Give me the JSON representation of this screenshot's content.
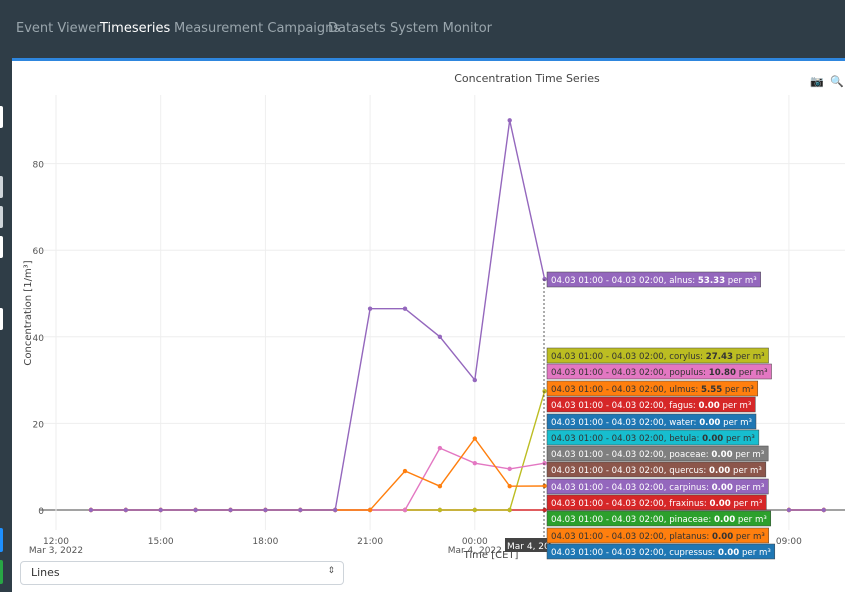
{
  "nav": {
    "items": [
      {
        "label": "Event Viewer",
        "active": false
      },
      {
        "label": "Timeseries",
        "active": true
      },
      {
        "label": "Measurement Campaigns",
        "active": false
      },
      {
        "label": "Datasets",
        "active": false
      },
      {
        "label": "System Monitor",
        "active": false
      }
    ]
  },
  "toolbar": {
    "camera_icon": "camera-icon",
    "zoom_icon": "zoom-icon"
  },
  "select": {
    "value": "Lines"
  },
  "chart_data": {
    "type": "line",
    "title": "Concentration Time Series",
    "xlabel": "Time [CET]",
    "ylabel": "Concentration [1/m³]",
    "ylim": [
      -2,
      92
    ],
    "yticks": [
      0,
      20,
      40,
      60,
      80
    ],
    "xticks": [
      {
        "label": "12:00",
        "sub": "Mar 3, 2022",
        "h": 12
      },
      {
        "label": "15:00",
        "sub": "",
        "h": 15
      },
      {
        "label": "18:00",
        "sub": "",
        "h": 18
      },
      {
        "label": "21:00",
        "sub": "",
        "h": 21
      },
      {
        "label": "00:00",
        "sub": "Mar 4, 2022",
        "h": 24
      },
      {
        "label": "09:00",
        "sub": "",
        "h": 33
      }
    ],
    "x_hover": "Mar 4, 2022",
    "x_hours": [
      13,
      14,
      15,
      16,
      17,
      18,
      19,
      20,
      21,
      22,
      23,
      24,
      25,
      26,
      27,
      28,
      29,
      30,
      31,
      32,
      33,
      34
    ],
    "series": [
      {
        "name": "alnus",
        "color": "#9467bd",
        "values": [
          0,
          0,
          0,
          0,
          0,
          0,
          0,
          0,
          46.5,
          46.5,
          40,
          30,
          90,
          53.33,
          null,
          null,
          null,
          null,
          null,
          null,
          0,
          0
        ]
      },
      {
        "name": "ulmus",
        "color": "#ff7f0e",
        "values": [
          0,
          0,
          0,
          0,
          0,
          0,
          0,
          0,
          0,
          9,
          5.5,
          16.5,
          5.5,
          5.55,
          null,
          null,
          null,
          null,
          null,
          null,
          0,
          0
        ]
      },
      {
        "name": "populus",
        "color": "#e377c2",
        "values": [
          0,
          0,
          0,
          0,
          0,
          0,
          0,
          0,
          0,
          0,
          14.3,
          10.8,
          9.5,
          10.8,
          null,
          null,
          null,
          null,
          null,
          null,
          0,
          0
        ]
      },
      {
        "name": "corylus",
        "color": "#bcbd22",
        "values": [
          0,
          0,
          0,
          0,
          0,
          0,
          0,
          0,
          0,
          0,
          0,
          0,
          0,
          27.43,
          null,
          null,
          null,
          null,
          null,
          null,
          0,
          0
        ]
      },
      {
        "name": "fagus",
        "color": "#d62728",
        "values": [
          0,
          0,
          0,
          0,
          0,
          0,
          0,
          0,
          0,
          0,
          0,
          0,
          0,
          0,
          null,
          null,
          null,
          null,
          null,
          null,
          0,
          0
        ]
      }
    ],
    "tooltips": [
      {
        "range": "04.03 01:00 - 04.03 02:00",
        "name": "alnus",
        "value": "53.33",
        "unit": "per m³",
        "bg": "#9467bd",
        "fg": "#ffffff"
      },
      {
        "range": "04.03 01:00 - 04.03 02:00",
        "name": "corylus",
        "value": "27.43",
        "unit": "per m³",
        "bg": "#bcbd22",
        "fg": "#333333"
      },
      {
        "range": "04.03 01:00 - 04.03 02:00",
        "name": "populus",
        "value": "10.80",
        "unit": "per m³",
        "bg": "#e377c2",
        "fg": "#333333"
      },
      {
        "range": "04.03 01:00 - 04.03 02:00",
        "name": "ulmus",
        "value": "5.55",
        "unit": "per m³",
        "bg": "#ff7f0e",
        "fg": "#333333"
      },
      {
        "range": "04.03 01:00 - 04.03 02:00",
        "name": "fagus",
        "value": "0.00",
        "unit": "per m³",
        "bg": "#d62728",
        "fg": "#ffffff"
      },
      {
        "range": "04.03 01:00 - 04.03 02:00",
        "name": "water",
        "value": "0.00",
        "unit": "per m³",
        "bg": "#1f77b4",
        "fg": "#ffffff"
      },
      {
        "range": "04.03 01:00 - 04.03 02:00",
        "name": "betula",
        "value": "0.00",
        "unit": "per m³",
        "bg": "#17becf",
        "fg": "#333333"
      },
      {
        "range": "04.03 01:00 - 04.03 02:00",
        "name": "poaceae",
        "value": "0.00",
        "unit": "per m³",
        "bg": "#7f7f7f",
        "fg": "#ffffff"
      },
      {
        "range": "04.03 01:00 - 04.03 02:00",
        "name": "quercus",
        "value": "0.00",
        "unit": "per m³",
        "bg": "#8c564b",
        "fg": "#ffffff"
      },
      {
        "range": "04.03 01:00 - 04.03 02:00",
        "name": "carpinus",
        "value": "0.00",
        "unit": "per m³",
        "bg": "#9467bd",
        "fg": "#ffffff"
      },
      {
        "range": "04.03 01:00 - 04.03 02:00",
        "name": "fraxinus",
        "value": "0.00",
        "unit": "per m³",
        "bg": "#d62728",
        "fg": "#ffffff"
      },
      {
        "range": "04.03 01:00 - 04.03 02:00",
        "name": "pinaceae",
        "value": "0.00",
        "unit": "per m³",
        "bg": "#2ca02c",
        "fg": "#ffffff"
      },
      {
        "range": "04.03 01:00 - 04.03 02:00",
        "name": "platanus",
        "value": "0.00",
        "unit": "per m³",
        "bg": "#ff7f0e",
        "fg": "#333333"
      },
      {
        "range": "04.03 01:00 - 04.03 02:00",
        "name": "cupressus",
        "value": "0.00",
        "unit": "per m³",
        "bg": "#1f77b4",
        "fg": "#ffffff"
      }
    ]
  }
}
